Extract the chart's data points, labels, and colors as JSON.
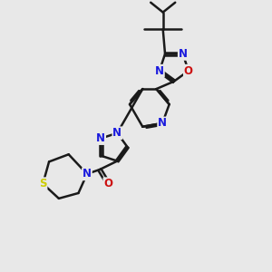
{
  "bg_color": "#e8e8e8",
  "bond_color": "#1a1a1a",
  "bond_width": 1.8,
  "atom_colors": {
    "N": "#1a1add",
    "O": "#cc1111",
    "S": "#cccc00",
    "C": "#1a1a1a"
  },
  "font_size": 8.5,
  "xlim": [
    0,
    10
  ],
  "ylim": [
    0,
    11
  ]
}
